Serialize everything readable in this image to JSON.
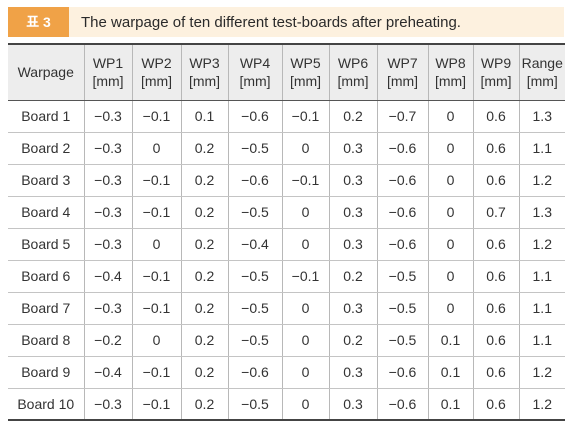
{
  "caption": {
    "tag": "표 3",
    "title": "The warpage of ten different test-boards after preheating."
  },
  "table": {
    "columns": [
      {
        "name": "Warpage",
        "unit": ""
      },
      {
        "name": "WP1",
        "unit": "[mm]"
      },
      {
        "name": "WP2",
        "unit": "[mm]"
      },
      {
        "name": "WP3",
        "unit": "[mm]"
      },
      {
        "name": "WP4",
        "unit": "[mm]"
      },
      {
        "name": "WP5",
        "unit": "[mm]"
      },
      {
        "name": "WP6",
        "unit": "[mm]"
      },
      {
        "name": "WP7",
        "unit": "[mm]"
      },
      {
        "name": "WP8",
        "unit": "[mm]"
      },
      {
        "name": "WP9",
        "unit": "[mm]"
      },
      {
        "name": "Range",
        "unit": "[mm]"
      }
    ],
    "rows": [
      [
        "Board 1",
        "−0.3",
        "−0.1",
        "0.1",
        "−0.6",
        "−0.1",
        "0.2",
        "−0.7",
        "0",
        "0.6",
        "1.3"
      ],
      [
        "Board 2",
        "−0.3",
        "0",
        "0.2",
        "−0.5",
        "0",
        "0.3",
        "−0.6",
        "0",
        "0.6",
        "1.1"
      ],
      [
        "Board 3",
        "−0.3",
        "−0.1",
        "0.2",
        "−0.6",
        "−0.1",
        "0.3",
        "−0.6",
        "0",
        "0.6",
        "1.2"
      ],
      [
        "Board 4",
        "−0.3",
        "−0.1",
        "0.2",
        "−0.5",
        "0",
        "0.3",
        "−0.6",
        "0",
        "0.7",
        "1.3"
      ],
      [
        "Board 5",
        "−0.3",
        "0",
        "0.2",
        "−0.4",
        "0",
        "0.3",
        "−0.6",
        "0",
        "0.6",
        "1.2"
      ],
      [
        "Board 6",
        "−0.4",
        "−0.1",
        "0.2",
        "−0.5",
        "−0.1",
        "0.2",
        "−0.5",
        "0",
        "0.6",
        "1.1"
      ],
      [
        "Board 7",
        "−0.3",
        "−0.1",
        "0.2",
        "−0.5",
        "0",
        "0.3",
        "−0.5",
        "0",
        "0.6",
        "1.1"
      ],
      [
        "Board 8",
        "−0.2",
        "0",
        "0.2",
        "−0.5",
        "0",
        "0.2",
        "−0.5",
        "0.1",
        "0.6",
        "1.1"
      ],
      [
        "Board 9",
        "−0.4",
        "−0.1",
        "0.2",
        "−0.6",
        "0",
        "0.3",
        "−0.6",
        "0.1",
        "0.6",
        "1.2"
      ],
      [
        "Board 10",
        "−0.3",
        "−0.1",
        "0.2",
        "−0.5",
        "0",
        "0.3",
        "−0.6",
        "0.1",
        "0.6",
        "1.2"
      ]
    ]
  },
  "colors": {
    "tag_bg": "#f0a247",
    "caption_bg": "#fdf1df",
    "header_bg": "#ededed"
  }
}
